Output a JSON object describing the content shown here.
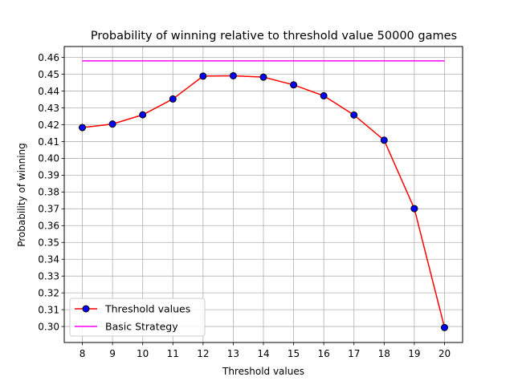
{
  "chart_data": {
    "type": "line",
    "title": "Probability of winning relative to threshold value 50000 games",
    "xlabel": "Threshold values",
    "ylabel": "Probability of winning",
    "x": [
      8,
      9,
      10,
      11,
      12,
      13,
      14,
      15,
      16,
      17,
      18,
      19,
      20
    ],
    "xlim": [
      7.4,
      20.6
    ],
    "ylim": [
      0.2905,
      0.4665
    ],
    "xticks": [
      "8",
      "9",
      "10",
      "11",
      "12",
      "13",
      "14",
      "15",
      "16",
      "17",
      "18",
      "19",
      "20"
    ],
    "yticks": [
      0.3,
      0.31,
      0.32,
      0.33,
      0.34,
      0.35,
      0.36,
      0.37,
      0.38,
      0.39,
      0.4,
      0.41,
      0.42,
      0.43,
      0.44,
      0.45,
      0.46
    ],
    "ytick_labels": [
      "0.30",
      "0.31",
      "0.32",
      "0.33",
      "0.34",
      "0.35",
      "0.36",
      "0.37",
      "0.38",
      "0.39",
      "0.40",
      "0.41",
      "0.42",
      "0.43",
      "0.44",
      "0.45",
      "0.46"
    ],
    "grid": true,
    "legend_position": "bottom-left",
    "series": [
      {
        "name": "Threshold values",
        "values": [
          0.4183,
          0.4204,
          0.4259,
          0.4353,
          0.4489,
          0.4491,
          0.4483,
          0.4437,
          0.4372,
          0.4258,
          0.4108,
          0.3701,
          0.2994
        ],
        "color": "#ff0000",
        "marker_color": "#0000ff",
        "marker_edge": "#000000"
      },
      {
        "name": "Basic Strategy",
        "values": [
          0.458,
          0.458,
          0.458,
          0.458,
          0.458,
          0.458,
          0.458,
          0.458,
          0.458,
          0.458,
          0.458,
          0.458,
          0.458
        ],
        "color": "#ff00ff"
      }
    ]
  }
}
